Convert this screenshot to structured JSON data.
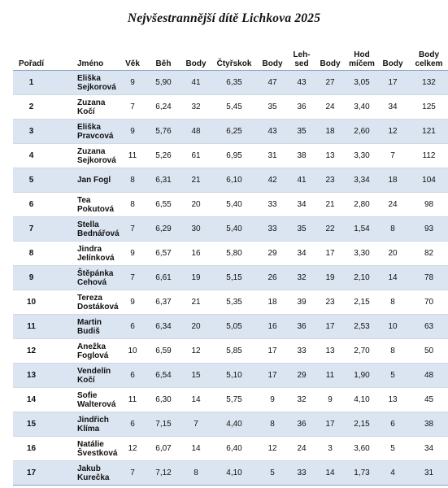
{
  "title": "Nejvšestrannější dítě Lichkova 2025",
  "headers": [
    "Pořadí",
    "Jméno",
    "Věk",
    "Běh",
    "Body",
    "Čtyřskok",
    "Body",
    "Leh-\nsed",
    "Body",
    "Hod\nmíčem",
    "Body",
    "Body\ncelkem"
  ],
  "rows": [
    {
      "rank": "1",
      "name": "Eliška\nSejkorová",
      "age": "9",
      "run": "5,90",
      "run_pts": "41",
      "jump": "6,35",
      "jump_pts": "47",
      "situps": "43",
      "situps_pts": "27",
      "throw": "3,05",
      "throw_pts": "17",
      "total": "132"
    },
    {
      "rank": "2",
      "name": "Zuzana Kočí",
      "age": "7",
      "run": "6,24",
      "run_pts": "32",
      "jump": "5,45",
      "jump_pts": "35",
      "situps": "36",
      "situps_pts": "24",
      "throw": "3,40",
      "throw_pts": "34",
      "total": "125"
    },
    {
      "rank": "3",
      "name": "Eliška\nPravcová",
      "age": "9",
      "run": "5,76",
      "run_pts": "48",
      "jump": "6,25",
      "jump_pts": "43",
      "situps": "35",
      "situps_pts": "18",
      "throw": "2,60",
      "throw_pts": "12",
      "total": "121"
    },
    {
      "rank": "4",
      "name": "Zuzana\nSejkorová",
      "age": "11",
      "run": "5,26",
      "run_pts": "61",
      "jump": "6,95",
      "jump_pts": "31",
      "situps": "38",
      "situps_pts": "13",
      "throw": "3,30",
      "throw_pts": "7",
      "total": "112"
    },
    {
      "rank": "5",
      "name": "Jan Fogl",
      "age": "8",
      "run": "6,31",
      "run_pts": "21",
      "jump": "6,10",
      "jump_pts": "42",
      "situps": "41",
      "situps_pts": "23",
      "throw": "3,34",
      "throw_pts": "18",
      "total": "104"
    },
    {
      "rank": "6",
      "name": "Tea\nPokutová",
      "age": "8",
      "run": "6,55",
      "run_pts": "20",
      "jump": "5,40",
      "jump_pts": "33",
      "situps": "34",
      "situps_pts": "21",
      "throw": "2,80",
      "throw_pts": "24",
      "total": "98"
    },
    {
      "rank": "7",
      "name": "Stella\nBednářová",
      "age": "7",
      "run": "6,29",
      "run_pts": "30",
      "jump": "5,40",
      "jump_pts": "33",
      "situps": "35",
      "situps_pts": "22",
      "throw": "1,54",
      "throw_pts": "8",
      "total": "93"
    },
    {
      "rank": "8",
      "name": "Jindra\nJelínková",
      "age": "9",
      "run": "6,57",
      "run_pts": "16",
      "jump": "5,80",
      "jump_pts": "29",
      "situps": "34",
      "situps_pts": "17",
      "throw": "3,30",
      "throw_pts": "20",
      "total": "82"
    },
    {
      "rank": "9",
      "name": "Štěpánka\nCehová",
      "age": "7",
      "run": "6,61",
      "run_pts": "19",
      "jump": "5,15",
      "jump_pts": "26",
      "situps": "32",
      "situps_pts": "19",
      "throw": "2,10",
      "throw_pts": "14",
      "total": "78"
    },
    {
      "rank": "10",
      "name": "Tereza\nDostáková",
      "age": "9",
      "run": "6,37",
      "run_pts": "21",
      "jump": "5,35",
      "jump_pts": "18",
      "situps": "39",
      "situps_pts": "23",
      "throw": "2,15",
      "throw_pts": "8",
      "total": "70"
    },
    {
      "rank": "11",
      "name": "Martin\nBudiš",
      "age": "6",
      "run": "6,34",
      "run_pts": "20",
      "jump": "5,05",
      "jump_pts": "16",
      "situps": "36",
      "situps_pts": "17",
      "throw": "2,53",
      "throw_pts": "10",
      "total": "63"
    },
    {
      "rank": "12",
      "name": "Anežka\nFoglová",
      "age": "10",
      "run": "6,59",
      "run_pts": "12",
      "jump": "5,85",
      "jump_pts": "17",
      "situps": "33",
      "situps_pts": "13",
      "throw": "2,70",
      "throw_pts": "8",
      "total": "50"
    },
    {
      "rank": "13",
      "name": "Vendelín\nKočí",
      "age": "6",
      "run": "6,54",
      "run_pts": "15",
      "jump": "5,10",
      "jump_pts": "17",
      "situps": "29",
      "situps_pts": "11",
      "throw": "1,90",
      "throw_pts": "5",
      "total": "48"
    },
    {
      "rank": "14",
      "name": "Sofie\nWalterová",
      "age": "11",
      "run": "6,30",
      "run_pts": "14",
      "jump": "5,75",
      "jump_pts": "9",
      "situps": "32",
      "situps_pts": "9",
      "throw": "4,10",
      "throw_pts": "13",
      "total": "45"
    },
    {
      "rank": "15",
      "name": "Jindřich\nKlíma",
      "age": "6",
      "run": "7,15",
      "run_pts": "7",
      "jump": "4,40",
      "jump_pts": "8",
      "situps": "36",
      "situps_pts": "17",
      "throw": "2,15",
      "throw_pts": "6",
      "total": "38"
    },
    {
      "rank": "16",
      "name": "Natálie\nŠvestková",
      "age": "12",
      "run": "6,07",
      "run_pts": "14",
      "jump": "6,40",
      "jump_pts": "12",
      "situps": "24",
      "situps_pts": "3",
      "throw": "3,60",
      "throw_pts": "5",
      "total": "34"
    },
    {
      "rank": "17",
      "name": "Jakub\nKurečka",
      "age": "7",
      "run": "7,12",
      "run_pts": "8",
      "jump": "4,10",
      "jump_pts": "5",
      "situps": "33",
      "situps_pts": "14",
      "throw": "1,73",
      "throw_pts": "4",
      "total": "31"
    }
  ]
}
